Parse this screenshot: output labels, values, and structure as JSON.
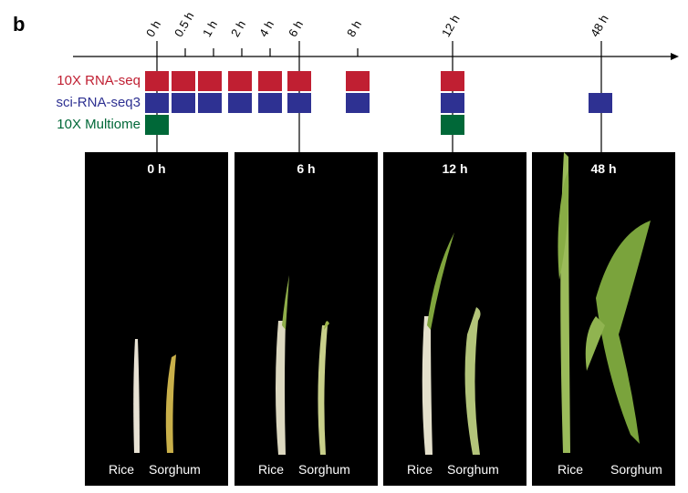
{
  "panel_label": "b",
  "timepoints": [
    "0 h",
    "0.5 h",
    "1 h",
    "2 h",
    "4 h",
    "6 h",
    "8 h",
    "12 h",
    "48 h"
  ],
  "assays": [
    {
      "name": "10X RNA-seq",
      "color": "#c01f32",
      "timepoints": [
        "0 h",
        "0.5 h",
        "1 h",
        "2 h",
        "4 h",
        "6 h",
        "8 h",
        "12 h"
      ]
    },
    {
      "name": "sci-RNA-seq3",
      "color": "#2e3192",
      "timepoints": [
        "0 h",
        "0.5 h",
        "1 h",
        "2 h",
        "4 h",
        "6 h",
        "8 h",
        "12 h",
        "48 h"
      ]
    },
    {
      "name": "10X Multiome",
      "color": "#006838",
      "timepoints": [
        "0 h",
        "12 h"
      ]
    }
  ],
  "photos": [
    {
      "title": "0 h",
      "left_label": "Rice",
      "right_label": "Sorghum"
    },
    {
      "title": "6 h",
      "left_label": "Rice",
      "right_label": "Sorghum"
    },
    {
      "title": "12 h",
      "left_label": "Rice",
      "right_label": "Sorghum"
    },
    {
      "title": "48 h",
      "left_label": "Rice",
      "right_label": "Sorghum"
    }
  ]
}
